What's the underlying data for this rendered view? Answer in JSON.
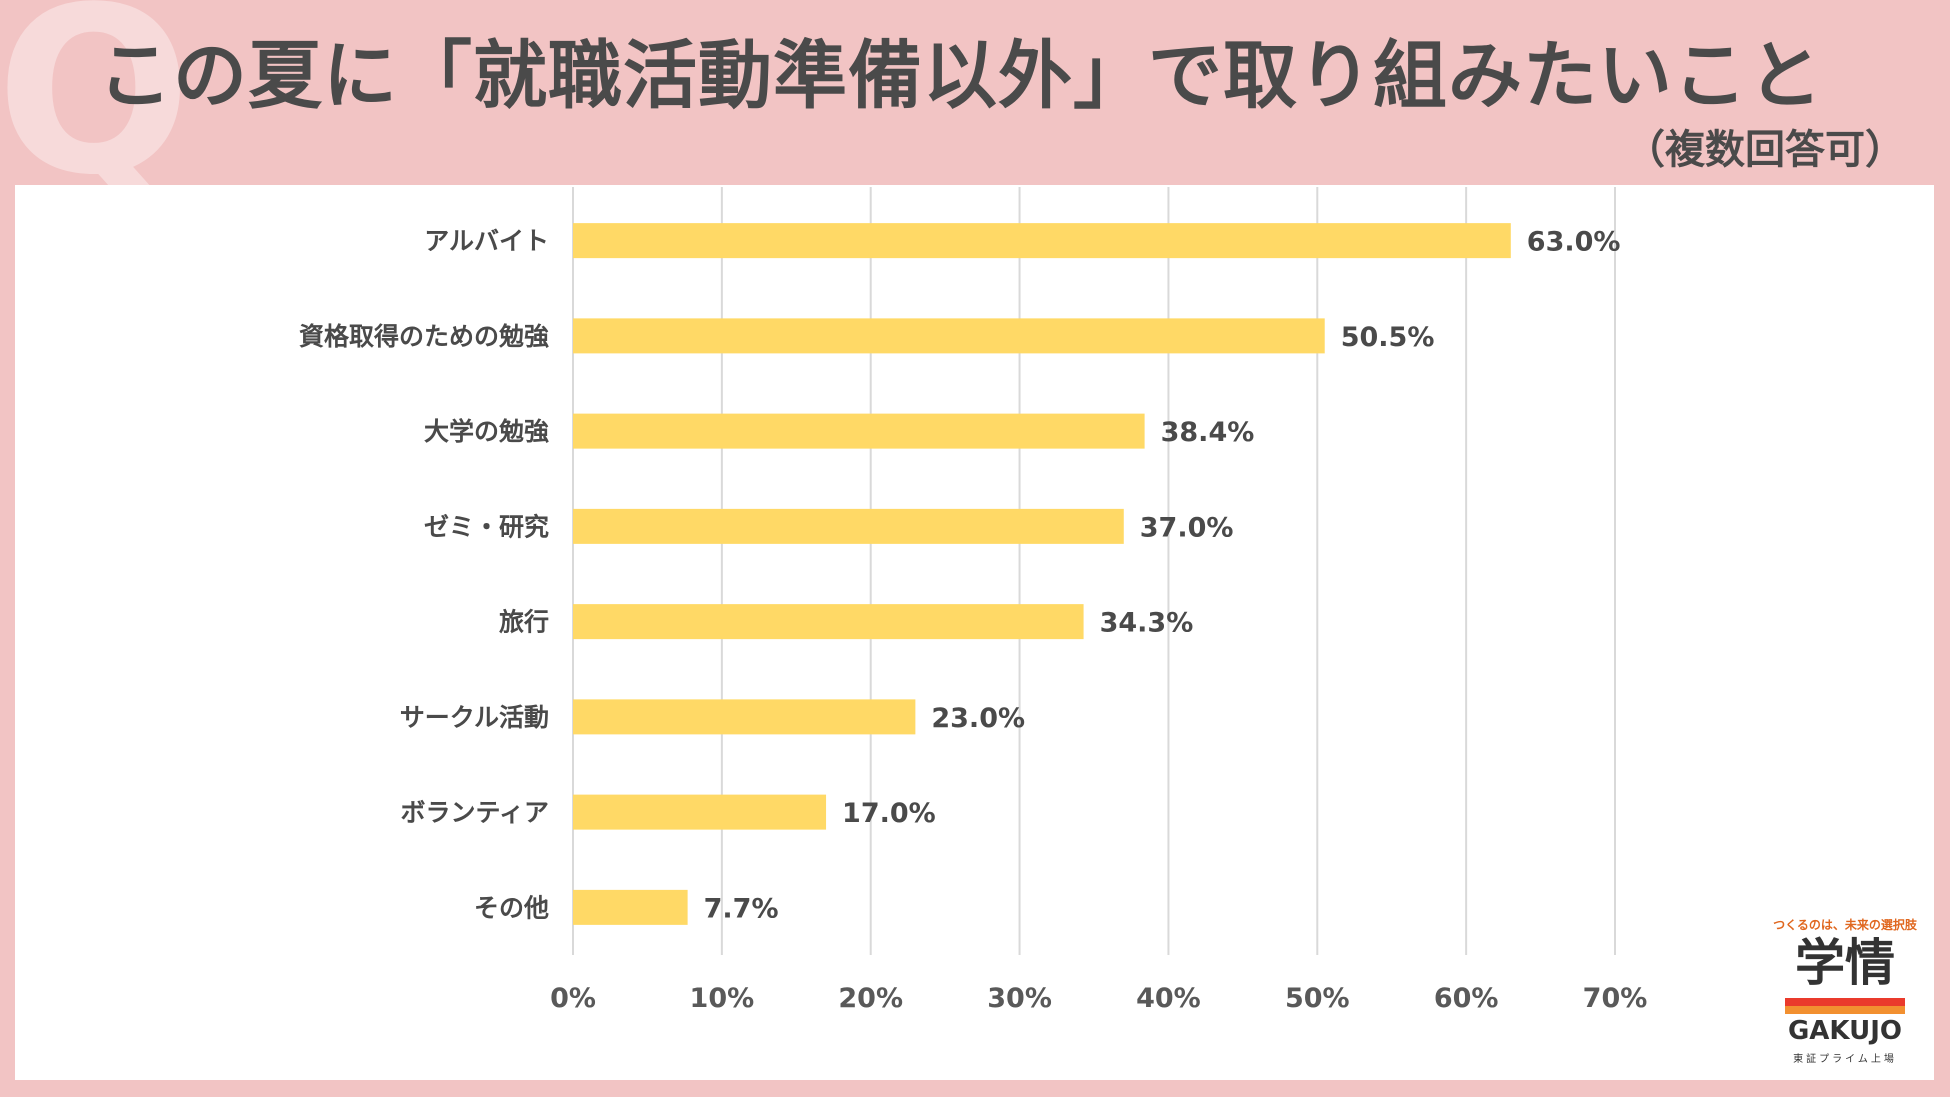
{
  "header": {
    "q_mark": "Q",
    "title": "この夏に「就職活動準備以外」で取り組みたいこと",
    "subtitle": "（複数回答可）"
  },
  "logo": {
    "tagline": "つくるのは、未来の選択肢",
    "mark": "学情",
    "name": "GAKUJO",
    "sub": "東証プライム上場"
  },
  "colors": {
    "background": "#f2c4c4",
    "bar": "#ffd966",
    "text": "#4a4a4a",
    "grid": "#d9d9d9"
  },
  "chart_data": {
    "type": "bar",
    "orientation": "horizontal",
    "title": "この夏に「就職活動準備以外」で取り組みたいこと",
    "subtitle": "（複数回答可）",
    "categories": [
      "アルバイト",
      "資格取得のための勉強",
      "大学の勉強",
      "ゼミ・研究",
      "旅行",
      "サークル活動",
      "ボランティア",
      "その他"
    ],
    "values": [
      63.0,
      50.5,
      38.4,
      37.0,
      34.3,
      23.0,
      17.0,
      7.7
    ],
    "value_labels": [
      "63.0%",
      "50.5%",
      "38.4%",
      "37.0%",
      "34.3%",
      "23.0%",
      "17.0%",
      "7.7%"
    ],
    "xlim": [
      0,
      70
    ],
    "x_ticks": [
      0,
      10,
      20,
      30,
      40,
      50,
      60,
      70
    ],
    "x_tick_labels": [
      "0%",
      "10%",
      "20%",
      "30%",
      "40%",
      "50%",
      "60%",
      "70%"
    ],
    "grid": "vertical",
    "legend": "none",
    "xlabel": "",
    "ylabel": ""
  }
}
